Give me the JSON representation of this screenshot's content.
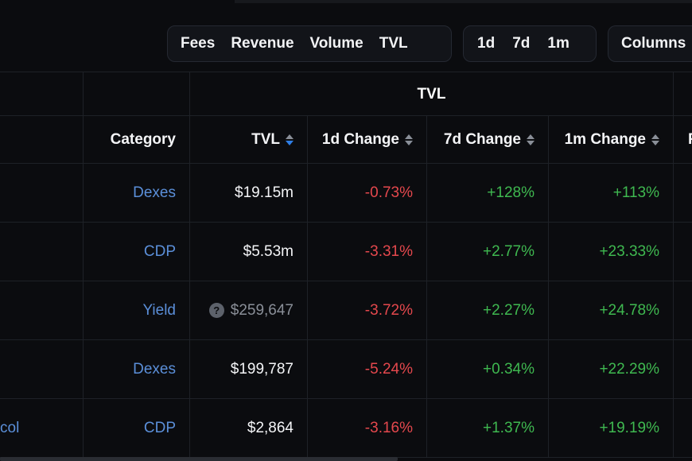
{
  "toolbar": {
    "metric_tabs": [
      "Fees",
      "Revenue",
      "Volume",
      "TVL"
    ],
    "period_tabs": [
      "1d",
      "7d",
      "1m"
    ],
    "columns_label": "Columns"
  },
  "table": {
    "group_header": "TVL",
    "headers": {
      "category": "Category",
      "tvl": "TVL",
      "change_1d": "1d Change",
      "change_7d": "7d Change",
      "change_1m": "1m Change",
      "next": "F"
    },
    "rows": [
      {
        "name": "",
        "category": "Dexes",
        "tvl": "$19.15m",
        "tvl_muted": false,
        "change_1d": "-0.73%",
        "change_7d": "+128%",
        "change_1m": "+113%"
      },
      {
        "name": "",
        "category": "CDP",
        "tvl": "$5.53m",
        "tvl_muted": false,
        "change_1d": "-3.31%",
        "change_7d": "+2.77%",
        "change_1m": "+23.33%"
      },
      {
        "name": "",
        "category": "Yield",
        "tvl": "$259,647",
        "tvl_muted": true,
        "change_1d": "-3.72%",
        "change_7d": "+2.27%",
        "change_1m": "+24.78%"
      },
      {
        "name": "",
        "category": "Dexes",
        "tvl": "$199,787",
        "tvl_muted": false,
        "change_1d": "-5.24%",
        "change_7d": "+0.34%",
        "change_1m": "+22.29%"
      },
      {
        "name": "col",
        "category": "CDP",
        "tvl": "$2,864",
        "tvl_muted": false,
        "change_1d": "-3.16%",
        "change_7d": "+1.37%",
        "change_1m": "+19.19%"
      }
    ]
  },
  "colors": {
    "background": "#0b0c0f",
    "category_link": "#5b8fd9",
    "negative": "#e5484d",
    "positive": "#3fb950"
  },
  "icons": {
    "sort": "sort-icon",
    "help": "question-circle-icon"
  }
}
